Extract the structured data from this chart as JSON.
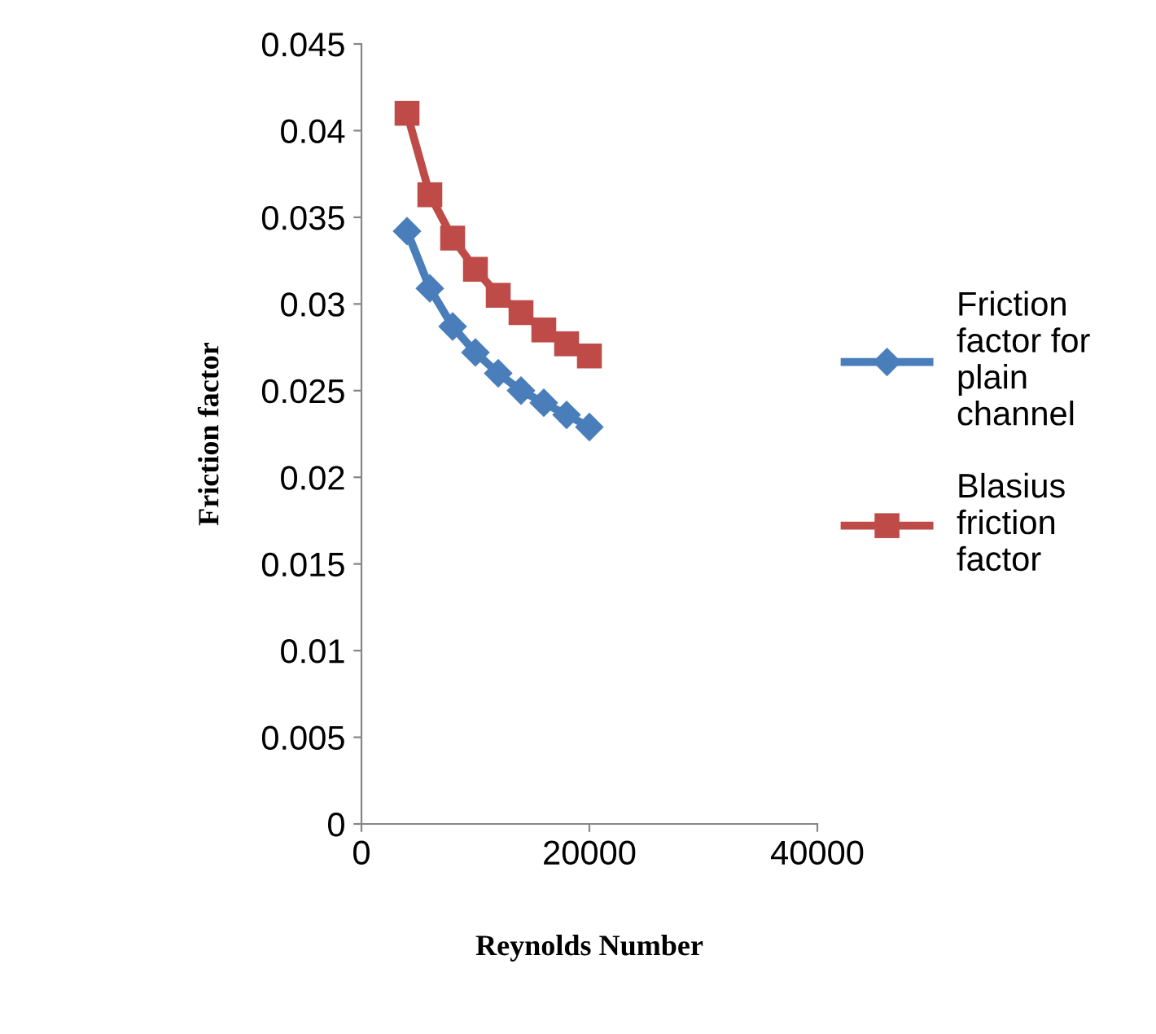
{
  "chart_data": {
    "type": "line",
    "xlabel": "Reynolds Number",
    "ylabel": "Friction factor",
    "x": [
      4000,
      6000,
      8000,
      10000,
      12000,
      14000,
      16000,
      18000,
      20000
    ],
    "series": [
      {
        "name": "Friction factor for plain channel",
        "color": "#4a7ebb",
        "marker": "diamond",
        "values": [
          0.0342,
          0.0309,
          0.0287,
          0.0272,
          0.026,
          0.025,
          0.0243,
          0.0236,
          0.0229
        ]
      },
      {
        "name": "Blasius friction factor",
        "color": "#be4b48",
        "marker": "square",
        "values": [
          0.041,
          0.0363,
          0.0338,
          0.032,
          0.0305,
          0.0295,
          0.0285,
          0.0277,
          0.027
        ]
      }
    ],
    "xlim": [
      0,
      40000
    ],
    "xticks": [
      0,
      20000,
      40000
    ],
    "ylim": [
      0,
      0.045
    ],
    "yticks": [
      {
        "value": 0,
        "label": "0"
      },
      {
        "value": 0.005,
        "label": "0.005"
      },
      {
        "value": 0.01,
        "label": "0.01"
      },
      {
        "value": 0.015,
        "label": "0.015"
      },
      {
        "value": 0.02,
        "label": "0.02"
      },
      {
        "value": 0.025,
        "label": "0.025"
      },
      {
        "value": 0.03,
        "label": "0.03"
      },
      {
        "value": 0.035,
        "label": "0.035"
      },
      {
        "value": 0.04,
        "label": "0.04"
      },
      {
        "value": 0.045,
        "label": "0.045"
      }
    ],
    "grid": false,
    "legend": "right",
    "line_style": "solid"
  }
}
